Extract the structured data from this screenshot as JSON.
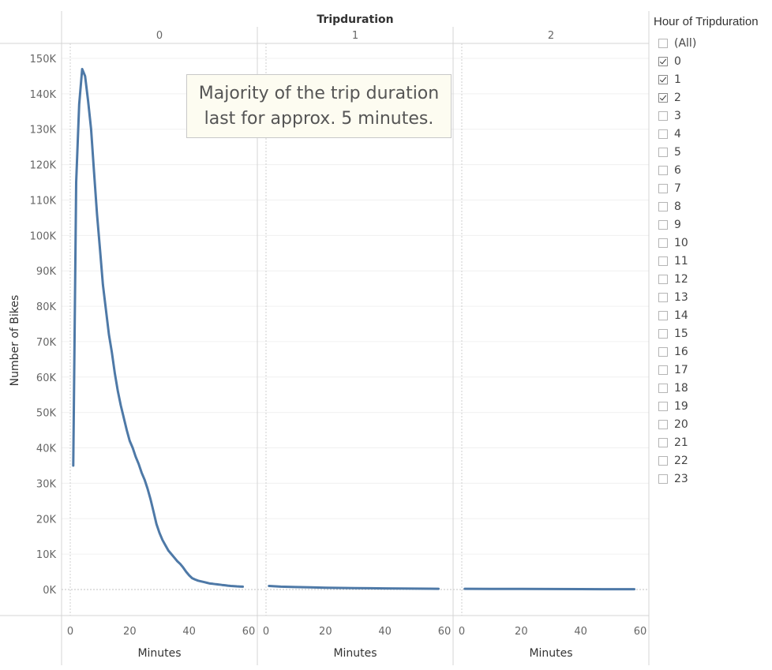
{
  "chart_data": {
    "type": "line",
    "title": "Tripduration",
    "ylabel": "Number of Bikes",
    "xlabel": "Minutes",
    "ylim": [
      0,
      150000
    ],
    "xlim": [
      0,
      60
    ],
    "y_ticks": [
      {
        "value": 0,
        "label": "0K"
      },
      {
        "value": 10000,
        "label": "10K"
      },
      {
        "value": 20000,
        "label": "20K"
      },
      {
        "value": 30000,
        "label": "30K"
      },
      {
        "value": 40000,
        "label": "40K"
      },
      {
        "value": 50000,
        "label": "50K"
      },
      {
        "value": 60000,
        "label": "60K"
      },
      {
        "value": 70000,
        "label": "70K"
      },
      {
        "value": 80000,
        "label": "80K"
      },
      {
        "value": 90000,
        "label": "90K"
      },
      {
        "value": 100000,
        "label": "100K"
      },
      {
        "value": 110000,
        "label": "110K"
      },
      {
        "value": 120000,
        "label": "120K"
      },
      {
        "value": 130000,
        "label": "130K"
      },
      {
        "value": 140000,
        "label": "140K"
      },
      {
        "value": 150000,
        "label": "150K"
      }
    ],
    "x_ticks": [
      {
        "value": 0,
        "label": "0"
      },
      {
        "value": 20,
        "label": "20"
      },
      {
        "value": 40,
        "label": "40"
      },
      {
        "value": 60,
        "label": "60"
      }
    ],
    "grid": "horizontal",
    "line_color": "#4e79a7",
    "panels": [
      {
        "label": "0",
        "points": [
          [
            1,
            35000
          ],
          [
            2,
            115000
          ],
          [
            3,
            137000
          ],
          [
            4,
            147000
          ],
          [
            5,
            145000
          ],
          [
            6,
            138000
          ],
          [
            7,
            130000
          ],
          [
            8,
            118000
          ],
          [
            9,
            106000
          ],
          [
            10,
            96000
          ],
          [
            11,
            86000
          ],
          [
            12,
            79000
          ],
          [
            13,
            72000
          ],
          [
            14,
            67000
          ],
          [
            15,
            61000
          ],
          [
            16,
            56000
          ],
          [
            17,
            52000
          ],
          [
            18,
            48500
          ],
          [
            19,
            45000
          ],
          [
            20,
            42000
          ],
          [
            21,
            40000
          ],
          [
            22,
            37500
          ],
          [
            23,
            35500
          ],
          [
            24,
            33000
          ],
          [
            25,
            31000
          ],
          [
            26,
            28500
          ],
          [
            27,
            25500
          ],
          [
            28,
            22000
          ],
          [
            29,
            18500
          ],
          [
            30,
            16000
          ],
          [
            31,
            14000
          ],
          [
            32,
            12500
          ],
          [
            33,
            11000
          ],
          [
            34,
            10000
          ],
          [
            35,
            9000
          ],
          [
            36,
            8000
          ],
          [
            37,
            7200
          ],
          [
            38,
            6200
          ],
          [
            39,
            5000
          ],
          [
            40,
            4000
          ],
          [
            41,
            3200
          ],
          [
            42,
            2800
          ],
          [
            43,
            2500
          ],
          [
            44,
            2300
          ],
          [
            45,
            2100
          ],
          [
            46,
            1900
          ],
          [
            47,
            1700
          ],
          [
            48,
            1600
          ],
          [
            49,
            1500
          ],
          [
            50,
            1400
          ],
          [
            51,
            1300
          ],
          [
            52,
            1200
          ],
          [
            53,
            1100
          ],
          [
            54,
            1000
          ],
          [
            55,
            950
          ],
          [
            56,
            900
          ],
          [
            57,
            850
          ],
          [
            58,
            800
          ]
        ]
      },
      {
        "label": "1",
        "points": [
          [
            1,
            1000
          ],
          [
            5,
            800
          ],
          [
            10,
            700
          ],
          [
            15,
            600
          ],
          [
            20,
            500
          ],
          [
            25,
            450
          ],
          [
            30,
            400
          ],
          [
            35,
            350
          ],
          [
            40,
            320
          ],
          [
            45,
            280
          ],
          [
            50,
            250
          ],
          [
            55,
            220
          ],
          [
            58,
            200
          ]
        ]
      },
      {
        "label": "2",
        "points": [
          [
            1,
            200
          ],
          [
            10,
            180
          ],
          [
            20,
            160
          ],
          [
            30,
            140
          ],
          [
            40,
            120
          ],
          [
            50,
            100
          ],
          [
            58,
            90
          ]
        ]
      }
    ]
  },
  "annotation": {
    "line1": "Majority of the trip duration",
    "line2": "last for approx. 5 minutes."
  },
  "legend": {
    "title": "Hour of Tripduration",
    "items": [
      {
        "label": "(All)",
        "checked": false
      },
      {
        "label": "0",
        "checked": true
      },
      {
        "label": "1",
        "checked": true
      },
      {
        "label": "2",
        "checked": true
      },
      {
        "label": "3",
        "checked": false
      },
      {
        "label": "4",
        "checked": false
      },
      {
        "label": "5",
        "checked": false
      },
      {
        "label": "6",
        "checked": false
      },
      {
        "label": "7",
        "checked": false
      },
      {
        "label": "8",
        "checked": false
      },
      {
        "label": "9",
        "checked": false
      },
      {
        "label": "10",
        "checked": false
      },
      {
        "label": "11",
        "checked": false
      },
      {
        "label": "12",
        "checked": false
      },
      {
        "label": "13",
        "checked": false
      },
      {
        "label": "14",
        "checked": false
      },
      {
        "label": "15",
        "checked": false
      },
      {
        "label": "16",
        "checked": false
      },
      {
        "label": "17",
        "checked": false
      },
      {
        "label": "18",
        "checked": false
      },
      {
        "label": "19",
        "checked": false
      },
      {
        "label": "20",
        "checked": false
      },
      {
        "label": "21",
        "checked": false
      },
      {
        "label": "22",
        "checked": false
      },
      {
        "label": "23",
        "checked": false
      }
    ]
  }
}
